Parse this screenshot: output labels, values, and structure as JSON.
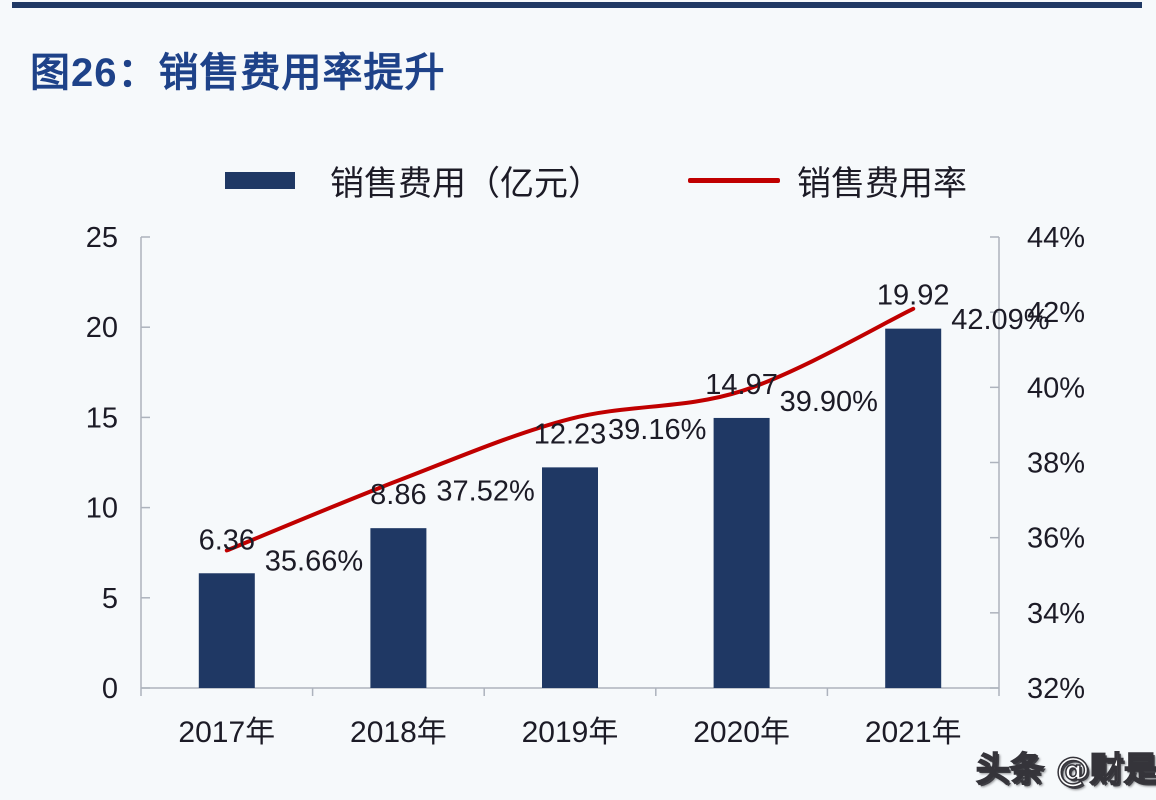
{
  "page": {
    "title": "图26：销售费用率提升",
    "watermark": "头条 @财是"
  },
  "colors": {
    "bar": "#1f3864",
    "line": "#c00000",
    "title": "#1e4289",
    "axis": "#adb3bd",
    "text": "#1c1b26",
    "background": "#f6f9fb"
  },
  "chart_data": {
    "type": "combo",
    "title": "图26：销售费用率提升",
    "categories": [
      "2017年",
      "2018年",
      "2019年",
      "2020年",
      "2021年"
    ],
    "series": [
      {
        "name": "销售费用（亿元）",
        "type": "bar",
        "axis": "left",
        "color": "#1f3864",
        "values": [
          6.36,
          8.86,
          12.23,
          14.97,
          19.92
        ],
        "data_labels": [
          "6.36",
          "8.86",
          "12.23",
          "14.97",
          "19.92"
        ]
      },
      {
        "name": "销售费用率",
        "type": "line",
        "axis": "right",
        "color": "#c00000",
        "values": [
          35.66,
          37.52,
          39.16,
          39.9,
          42.09
        ],
        "data_labels": [
          "35.66%",
          "37.52%",
          "39.16%",
          "39.90%",
          "42.09%"
        ]
      }
    ],
    "left_axis": {
      "min": 0,
      "max": 25,
      "step": 5,
      "tick_labels": [
        "0",
        "5",
        "10",
        "15",
        "20",
        "25"
      ]
    },
    "right_axis": {
      "min": 32,
      "max": 44,
      "step": 2,
      "tick_labels": [
        "32%",
        "34%",
        "36%",
        "38%",
        "40%",
        "42%",
        "44%"
      ]
    },
    "grid": false,
    "legend_position": "top"
  }
}
